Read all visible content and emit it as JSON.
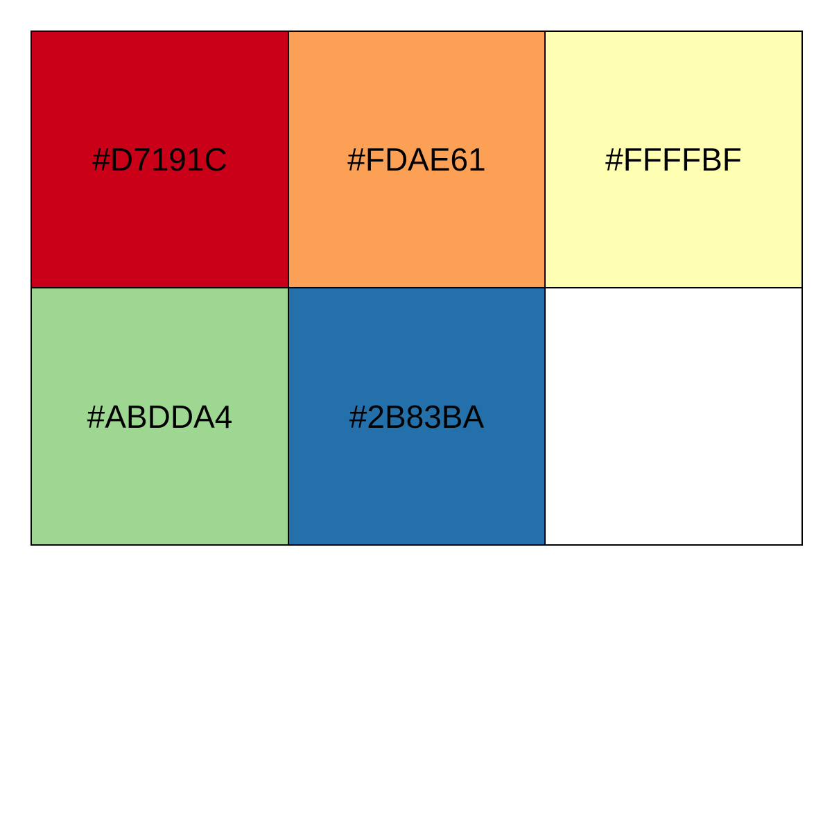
{
  "palette": {
    "swatches": [
      {
        "label": "#D7191C",
        "color": "#CA0018"
      },
      {
        "label": "#FDAE61",
        "color": "#FBA055"
      },
      {
        "label": "#FFFFBF",
        "color": "#FFFFB3"
      },
      {
        "label": "#ABDDA4",
        "color": "#9ED792"
      },
      {
        "label": "#2B83BA",
        "color": "#2470AB"
      },
      {
        "label": "",
        "color": "#FFFFFF"
      }
    ]
  }
}
